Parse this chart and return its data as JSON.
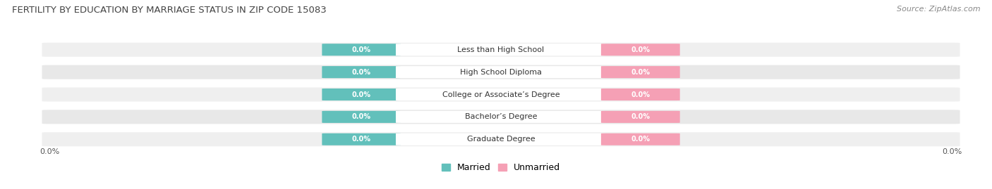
{
  "title": "FERTILITY BY EDUCATION BY MARRIAGE STATUS IN ZIP CODE 15083",
  "source": "Source: ZipAtlas.com",
  "categories": [
    "Less than High School",
    "High School Diploma",
    "College or Associate’s Degree",
    "Bachelor’s Degree",
    "Graduate Degree"
  ],
  "married_values": [
    0.0,
    0.0,
    0.0,
    0.0,
    0.0
  ],
  "unmarried_values": [
    0.0,
    0.0,
    0.0,
    0.0,
    0.0
  ],
  "married_color": "#62c0bb",
  "unmarried_color": "#f5a0b5",
  "row_bg_even": "#efefef",
  "row_bg_odd": "#e8e8e8",
  "label_bg": "#ffffff",
  "label_color": "#333333",
  "title_color": "#444444",
  "source_color": "#888888",
  "value_text_color": "#ffffff",
  "x_tick_label": "0.0%",
  "legend_married": "Married",
  "legend_unmarried": "Unmarried",
  "fig_width": 14.06,
  "fig_height": 2.69,
  "title_fontsize": 9.5,
  "source_fontsize": 8,
  "category_fontsize": 8,
  "value_fontsize": 7,
  "legend_fontsize": 9,
  "xtick_fontsize": 8
}
